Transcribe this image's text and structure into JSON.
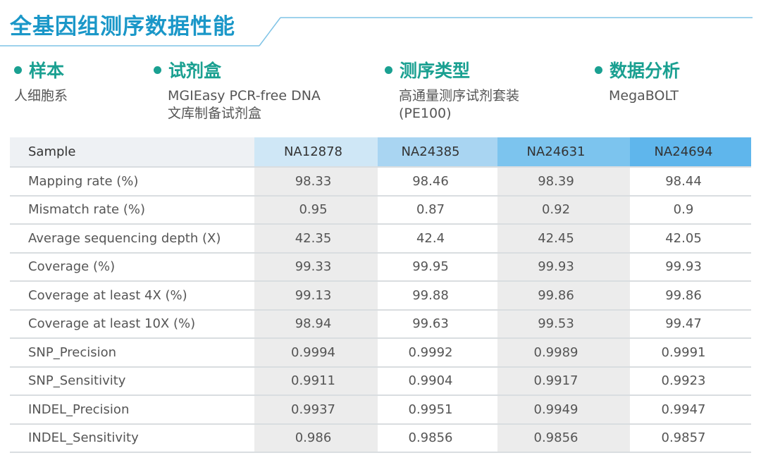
{
  "title": "全基因组测序数据性能",
  "colors": {
    "title": "#1a97c8",
    "accent": "#1aa091"
  },
  "info": [
    {
      "label": "样本",
      "lines": [
        "人细胞系"
      ]
    },
    {
      "label": "试剂盒",
      "lines": [
        "MGIEasy PCR-free DNA",
        "文库制备试剂盒"
      ]
    },
    {
      "label": "测序类型",
      "lines": [
        "高通量测序试剂套装",
        "(PE100)"
      ]
    },
    {
      "label": "数据分析",
      "lines": [
        "MegaBOLT"
      ]
    }
  ],
  "table": {
    "headers": [
      "Sample",
      "NA12878",
      "NA24385",
      "NA24631",
      "NA24694"
    ],
    "rows": [
      [
        "Mapping rate (%)",
        "98.33",
        "98.46",
        "98.39",
        "98.44"
      ],
      [
        "Mismatch rate (%)",
        "0.95",
        "0.87",
        "0.92",
        "0.9"
      ],
      [
        "Average sequencing depth (X)",
        "42.35",
        "42.4",
        "42.45",
        "42.05"
      ],
      [
        "Coverage  (%)",
        "99.33",
        "99.95",
        "99.93",
        "99.93"
      ],
      [
        "Coverage at least 4X  (%)",
        "99.13",
        "99.88",
        "99.86",
        "99.86"
      ],
      [
        "Coverage at least 10X  (%)",
        "98.94",
        "99.63",
        "99.53",
        "99.47"
      ],
      [
        "SNP_Precision",
        "0.9994",
        "0.9992",
        "0.9989",
        "0.9991"
      ],
      [
        "SNP_Sensitivity",
        "0.9911",
        "0.9904",
        "0.9917",
        "0.9923"
      ],
      [
        "INDEL_Precision",
        "0.9937",
        "0.9951",
        "0.9949",
        "0.9947"
      ],
      [
        "INDEL_Sensitivity",
        "0.986",
        "0.9856",
        "0.9856",
        "0.9857"
      ]
    ]
  }
}
